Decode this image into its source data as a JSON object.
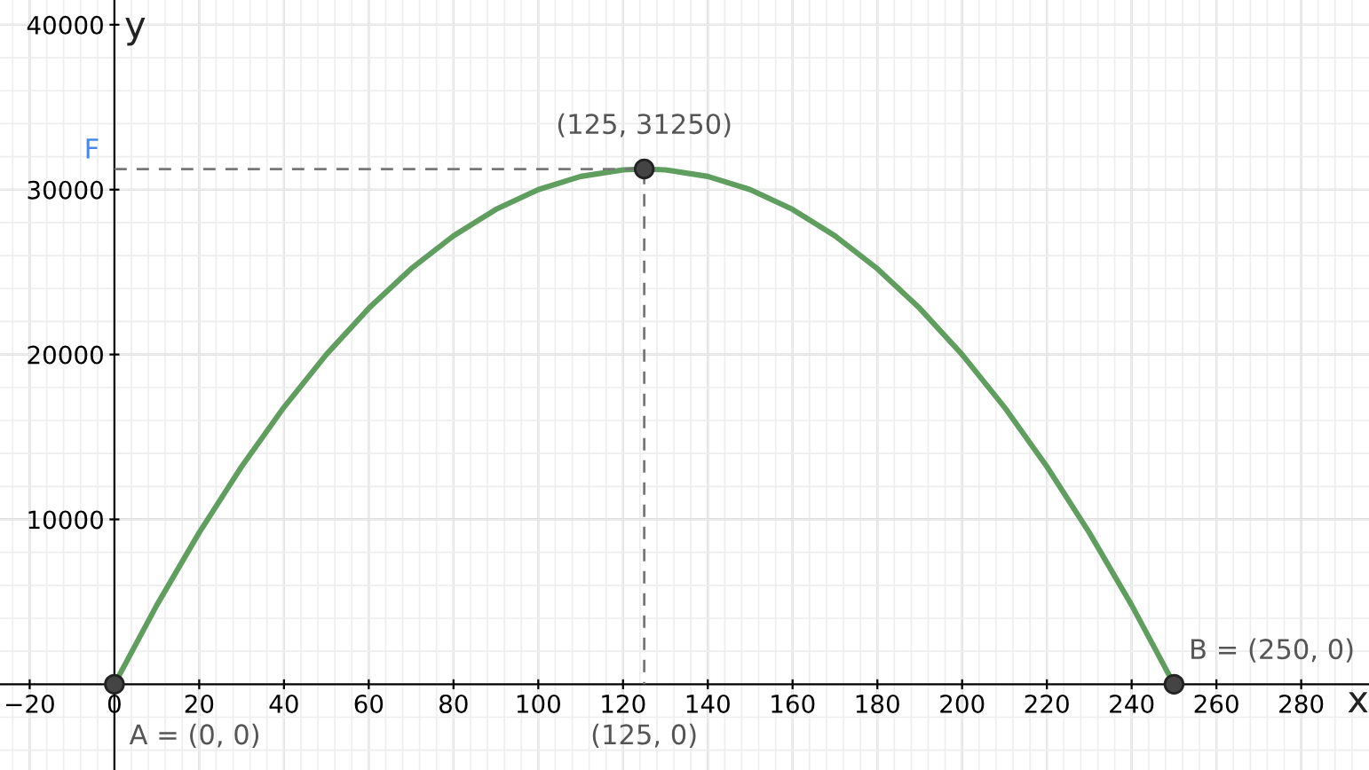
{
  "chart_data": {
    "type": "line",
    "xlabel": "x",
    "ylabel": "y",
    "xlim": [
      -27,
      296
    ],
    "ylim": [
      -5200,
      41500
    ],
    "xticks": [
      -20,
      0,
      20,
      40,
      60,
      80,
      100,
      120,
      140,
      160,
      180,
      200,
      220,
      240,
      260,
      280
    ],
    "yticks": [
      10000,
      20000,
      30000,
      40000
    ],
    "grid": true,
    "legend": false,
    "series": [
      {
        "color": "#5f9e5f",
        "marker": "none",
        "line_style": "solid",
        "x": [
          0,
          10,
          20,
          30,
          40,
          50,
          60,
          70,
          80,
          90,
          100,
          110,
          120,
          125,
          130,
          140,
          150,
          160,
          170,
          180,
          190,
          200,
          210,
          220,
          230,
          240,
          250
        ],
        "values": [
          0,
          4800,
          9200,
          13200,
          16800,
          20000,
          22800,
          25200,
          27200,
          28800,
          30000,
          30800,
          31200,
          31250,
          31200,
          30800,
          30000,
          28800,
          27200,
          25200,
          22800,
          20000,
          16800,
          13200,
          9200,
          4800,
          0
        ]
      },
      {
        "color": "#777777",
        "marker": "none",
        "line_style": "dashed",
        "x": [
          0,
          125,
          125
        ],
        "values": [
          31250,
          31250,
          0
        ]
      },
      {
        "type": "scatter",
        "color": "#444444",
        "marker": "circle",
        "x": [
          0,
          125,
          250
        ],
        "values": [
          0,
          31250,
          0
        ]
      }
    ],
    "annotations": [
      {
        "text": "(125, 31250)",
        "x": 125,
        "y": 31250
      },
      {
        "text": "A = (0, 0)",
        "x": 0,
        "y": 0
      },
      {
        "text": "B = (250, 0)",
        "x": 250,
        "y": 0
      },
      {
        "text": "(125, 0)",
        "x": 125,
        "y": 0
      },
      {
        "text": "F",
        "x": 0,
        "y": 31250
      }
    ]
  }
}
